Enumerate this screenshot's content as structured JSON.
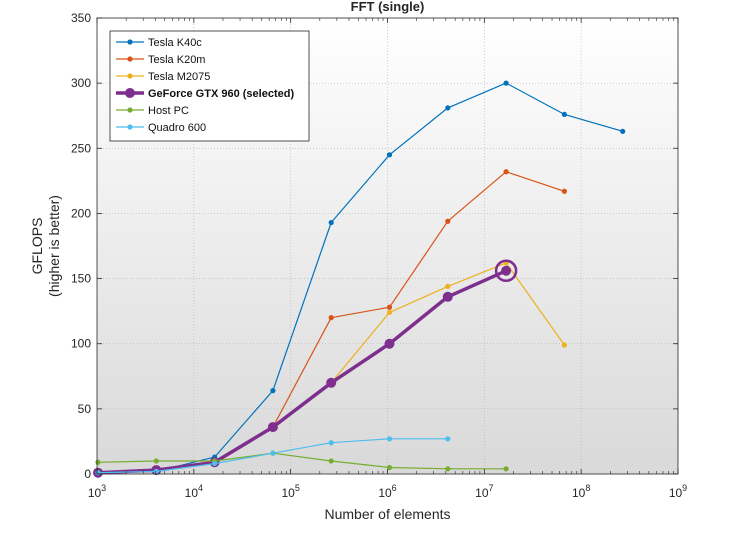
{
  "chart_data": {
    "type": "line",
    "title": "FFT (single)",
    "xlabel": "Number of elements",
    "ylabel": [
      "GFLOPS",
      "(higher is better)"
    ],
    "xscale": "log",
    "xlim": [
      1000,
      1000000000
    ],
    "ylim": [
      0,
      350
    ],
    "x_tick_labels": [
      {
        "base": "10",
        "exp": "3"
      },
      {
        "base": "10",
        "exp": "4"
      },
      {
        "base": "10",
        "exp": "5"
      },
      {
        "base": "10",
        "exp": "6"
      },
      {
        "base": "10",
        "exp": "7"
      },
      {
        "base": "10",
        "exp": "8"
      },
      {
        "base": "10",
        "exp": "9"
      }
    ],
    "y_ticks": [
      0,
      50,
      100,
      150,
      200,
      250,
      300,
      350
    ],
    "grid": true,
    "legend_position": "top-left",
    "series": [
      {
        "name": "Tesla K40c",
        "color": "#0072BD",
        "x": [
          1024,
          4096,
          16384,
          65536,
          262144,
          1048576,
          4194304,
          16777216,
          67108864,
          268435456
        ],
        "y": [
          1,
          2,
          13,
          64,
          193,
          245,
          281,
          300,
          276,
          263
        ]
      },
      {
        "name": "Tesla K20m",
        "color": "#D95319",
        "x": [
          1024,
          4096,
          16384,
          65536,
          262144,
          1048576,
          4194304,
          16777216,
          67108864
        ],
        "y": [
          1,
          2,
          9,
          36,
          120,
          128,
          194,
          232,
          217
        ]
      },
      {
        "name": "Tesla M2075",
        "color": "#EDB120",
        "x": [
          1024,
          4096,
          16384,
          65536,
          262144,
          1048576,
          4194304,
          16777216,
          67108864
        ],
        "y": [
          1,
          2,
          9,
          36,
          70,
          124,
          144,
          162,
          99
        ]
      },
      {
        "name": "GeForce GTX 960 (selected)",
        "color": "#7E2F8E",
        "selected": true,
        "x": [
          1024,
          4096,
          16384,
          65536,
          262144,
          1048576,
          4194304,
          16777216
        ],
        "y": [
          1,
          3,
          9,
          36,
          70,
          100,
          136,
          156
        ]
      },
      {
        "name": "Host PC",
        "color": "#77AC30",
        "x": [
          1024,
          4096,
          16384,
          65536,
          262144,
          1048576,
          4194304,
          16777216
        ],
        "y": [
          9,
          10,
          10,
          16,
          10,
          5,
          4,
          4
        ]
      },
      {
        "name": "Quadro 600",
        "color": "#4DBEEE",
        "x": [
          1024,
          4096,
          16384,
          65536,
          262144,
          1048576,
          4194304
        ],
        "y": [
          1,
          2,
          8,
          16,
          24,
          27,
          27
        ]
      }
    ]
  }
}
